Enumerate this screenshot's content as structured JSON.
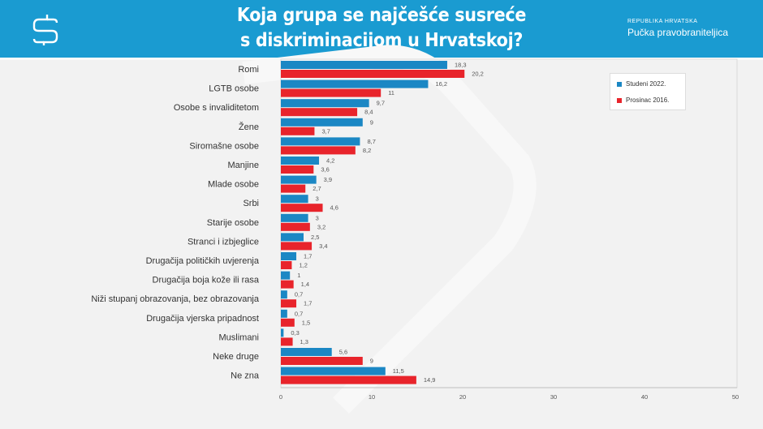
{
  "header": {
    "title_line1": "Koja grupa se najčešće susreće",
    "title_line2": "s diskriminacijom u Hrvatskoj?",
    "brand_small": "REPUBLIKA HRVATSKA",
    "brand": "Pučka pravobraniteljica"
  },
  "chart_data": {
    "type": "bar",
    "orientation": "horizontal",
    "title": "Koja grupa se najčešće susreće s diskriminacijom u Hrvatskoj?",
    "categories": [
      "Romi",
      "LGTB osobe",
      "Osobe s invaliditetom",
      "Žene",
      "Siromašne osobe",
      "Manjine",
      "Mlade osobe",
      "Srbi",
      "Starije osobe",
      "Stranci  i izbjeglice",
      "Drugačija  političkih  uvjerenja",
      "Drugačija  boja kože ili rasa",
      "Niži stupanj  obrazovanja,  bez obrazovanja",
      "Drugačija  vjerska pripadnost",
      "Muslimani",
      "Neke druge",
      "Ne zna"
    ],
    "series": [
      {
        "name": "Studeni 2022.",
        "color": "#1b87c4",
        "values": [
          18.3,
          16.2,
          9.7,
          9,
          8.7,
          4.2,
          3.9,
          3,
          3,
          2.5,
          1.7,
          1,
          0.7,
          0.7,
          0.3,
          5.6,
          11.5
        ],
        "labels": [
          "18,3",
          "16,2",
          "9,7",
          "9",
          "8,7",
          "4,2",
          "3,9",
          "3",
          "3",
          "2,5",
          "1,7",
          "1",
          "0,7",
          "0,7",
          "0,3",
          "5,6",
          "11,5"
        ]
      },
      {
        "name": "Prosinac 2016.",
        "color": "#e8242b",
        "values": [
          20.2,
          11,
          8.4,
          3.7,
          8.2,
          3.6,
          2.7,
          4.6,
          3.2,
          3.4,
          1.2,
          1.4,
          1.7,
          1.5,
          1.3,
          9,
          14.9
        ],
        "labels": [
          "20,2",
          "11",
          "8,4",
          "3,7",
          "8,2",
          "3,6",
          "2,7",
          "4,6",
          "3,2",
          "3,4",
          "1,2",
          "1,4",
          "1,7",
          "1,5",
          "1,3",
          "9",
          "14,9"
        ]
      }
    ],
    "xlim": [
      0,
      50
    ],
    "xticks": [
      "0",
      "10",
      "20",
      "30",
      "40",
      "50"
    ],
    "grid": false,
    "legend": "top-right"
  }
}
